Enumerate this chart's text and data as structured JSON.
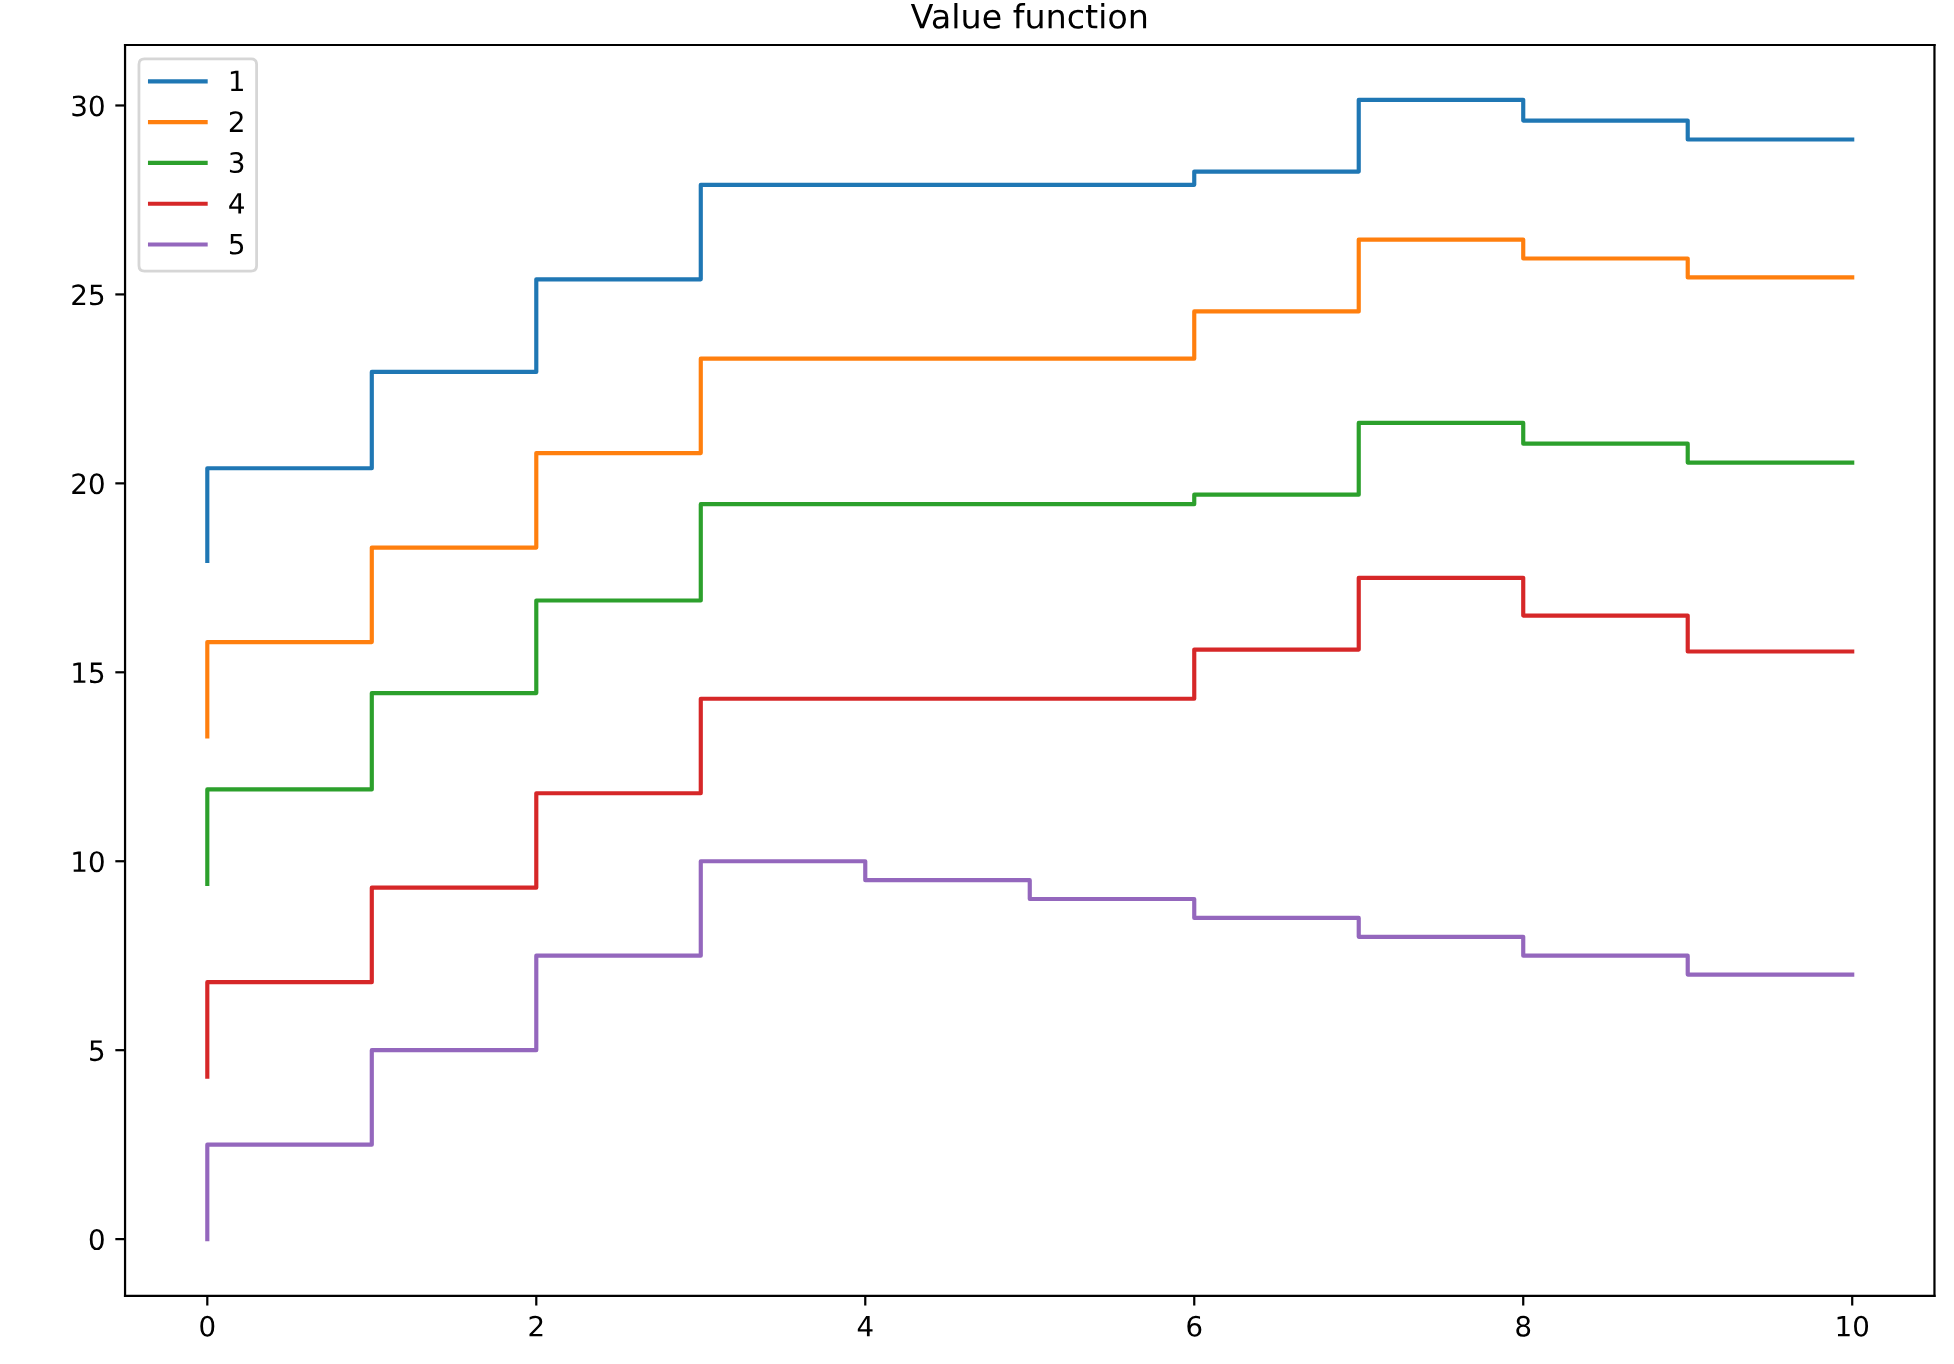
{
  "chart_data": {
    "type": "step",
    "title": "Value function",
    "x": [
      0,
      1,
      2,
      3,
      4,
      5,
      6,
      7,
      8,
      9,
      10
    ],
    "series": [
      {
        "name": "1",
        "color": "#1f77b4",
        "values": [
          17.95,
          20.4,
          22.95,
          25.4,
          27.9,
          27.9,
          27.9,
          28.25,
          30.15,
          29.6,
          29.1
        ]
      },
      {
        "name": "2",
        "color": "#ff7f0e",
        "values": [
          13.3,
          15.8,
          18.3,
          20.8,
          23.3,
          23.3,
          23.3,
          24.55,
          26.45,
          25.95,
          25.45
        ]
      },
      {
        "name": "3",
        "color": "#2ca02c",
        "values": [
          9.4,
          11.9,
          14.45,
          16.9,
          19.45,
          19.45,
          19.45,
          19.7,
          21.6,
          21.05,
          20.55
        ]
      },
      {
        "name": "4",
        "color": "#d62728",
        "values": [
          4.3,
          6.8,
          9.3,
          11.8,
          14.3,
          14.3,
          14.3,
          15.6,
          17.5,
          16.5,
          15.55
        ]
      },
      {
        "name": "5",
        "color": "#9467bd",
        "values": [
          0,
          2.5,
          5.0,
          7.5,
          10.0,
          9.5,
          9.0,
          8.5,
          8.0,
          7.5,
          7.0
        ]
      }
    ],
    "xlim": [
      -0.5,
      10.5
    ],
    "xticks": [
      0,
      2,
      4,
      6,
      8,
      10
    ],
    "ylim": [
      -1.5,
      31.6
    ],
    "yticks": [
      0,
      5,
      10,
      15,
      20,
      25,
      30
    ],
    "grid": false,
    "legend": "top left"
  }
}
